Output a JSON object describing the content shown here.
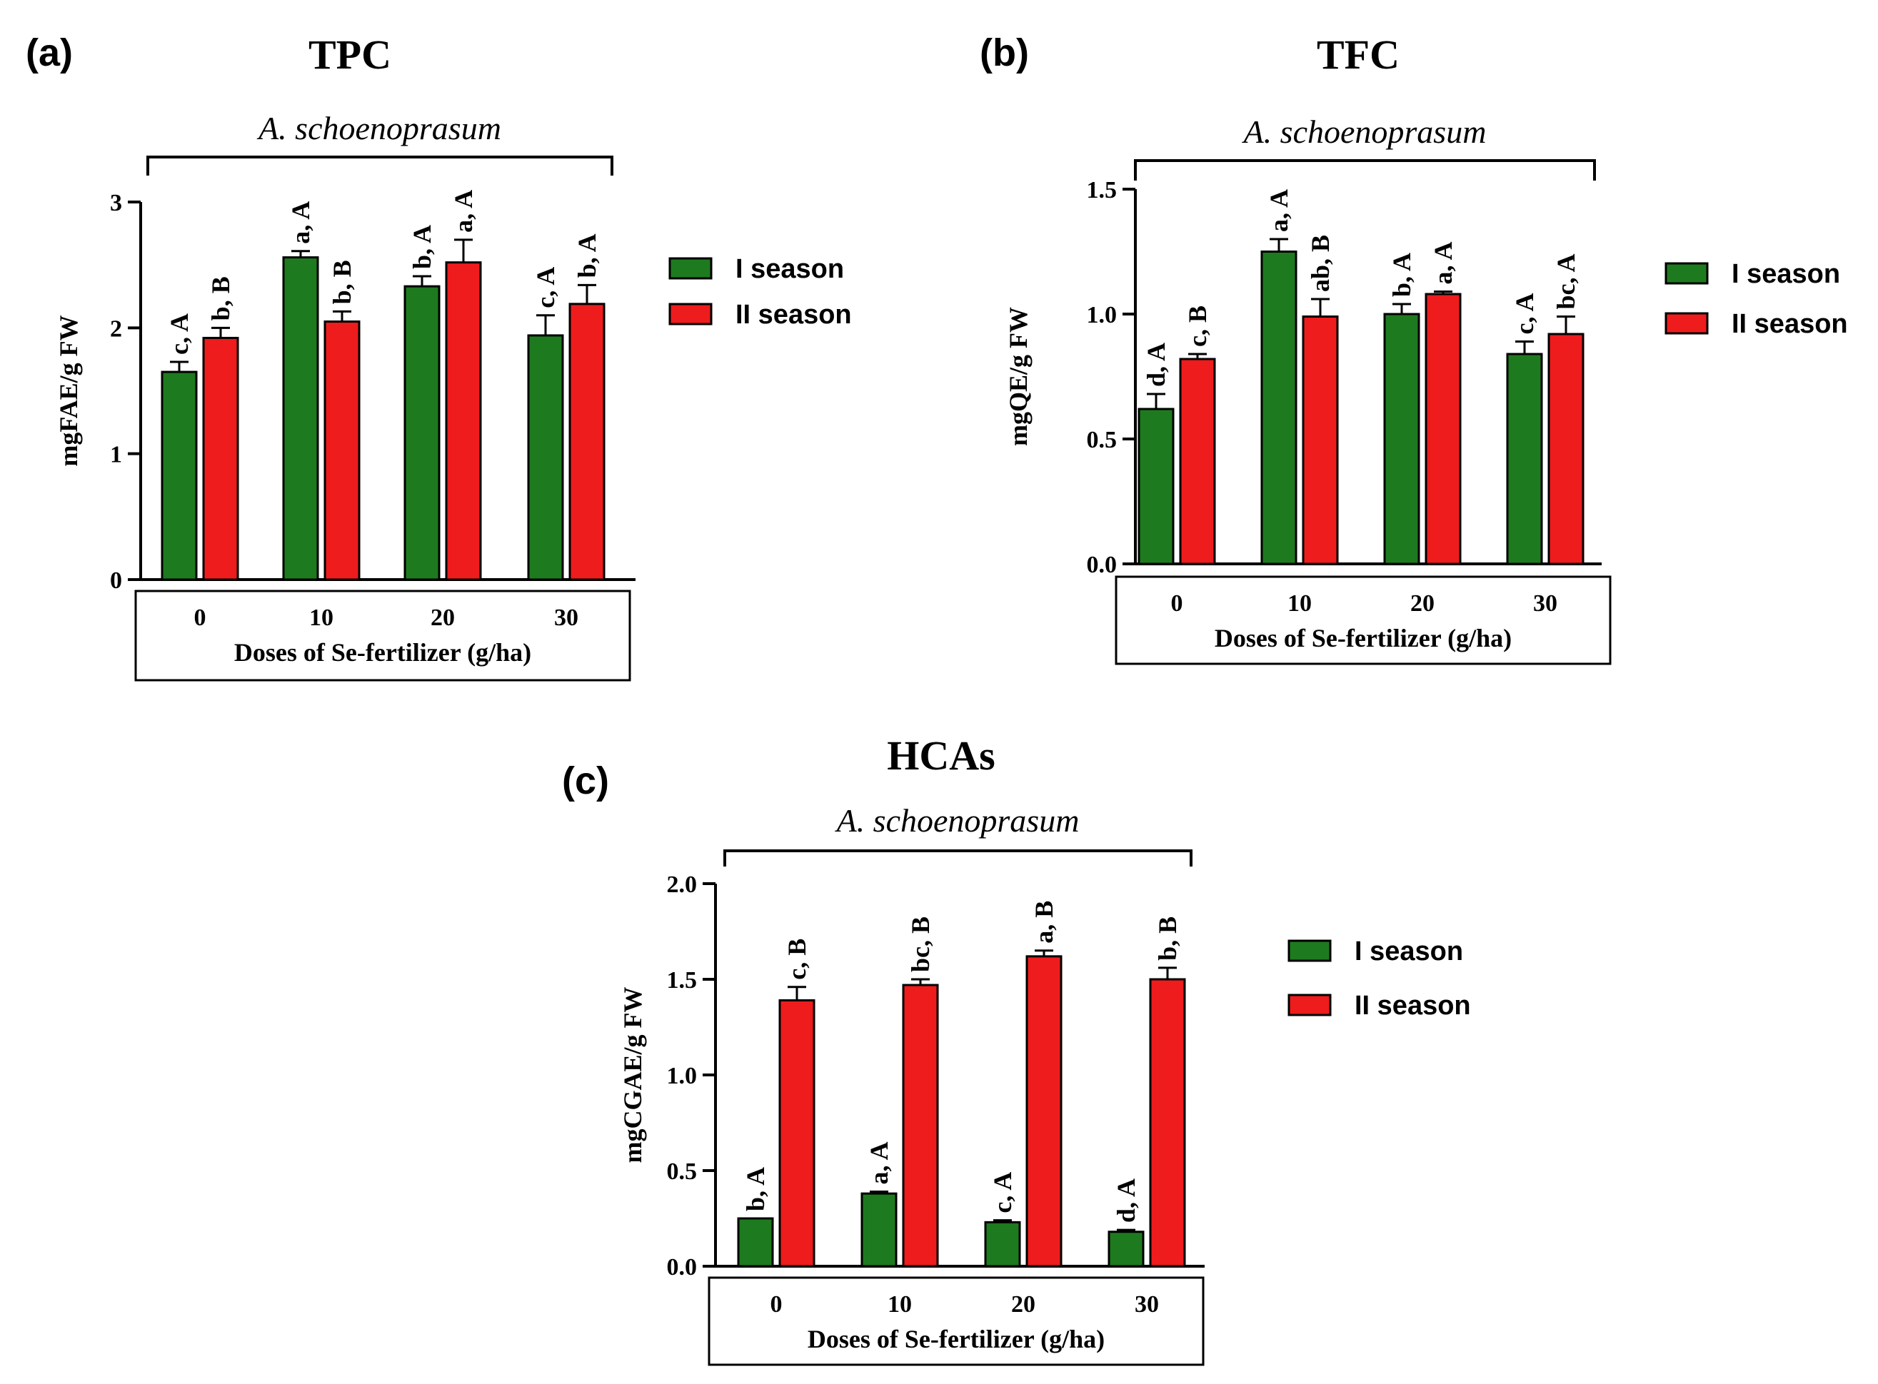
{
  "figure": {
    "panels": [
      "(a)",
      "(b)",
      "(c)"
    ]
  },
  "colors": {
    "season1": "#1e7a1e",
    "season2": "#ee1c1c",
    "axis": "#000000"
  },
  "chart_data": [
    {
      "panel": "(a)",
      "type": "bar",
      "title": "TPC",
      "subtitle": "A. schoenoprasum",
      "xlabel": "Doses of Se-fertilizer (g/ha)",
      "ylabel": "mgFAE/g FW",
      "categories": [
        "0",
        "10",
        "20",
        "30"
      ],
      "ylim": [
        0,
        3
      ],
      "yticks": [
        0,
        1,
        2,
        3
      ],
      "ytick_labels": [
        "0",
        "1",
        "2",
        "3"
      ],
      "legend_position": "right",
      "series": [
        {
          "name": "I season",
          "color_key": "season1",
          "values": [
            1.65,
            2.56,
            2.33,
            1.94
          ],
          "errors": [
            0.08,
            0.05,
            0.08,
            0.16
          ],
          "labels": [
            "c, A",
            "a, A",
            "b, A",
            "c, A"
          ]
        },
        {
          "name": "II season",
          "color_key": "season2",
          "values": [
            1.92,
            2.05,
            2.52,
            2.19
          ],
          "errors": [
            0.08,
            0.08,
            0.18,
            0.15
          ],
          "labels": [
            "b, B",
            "b, B",
            "a, A",
            "b, A"
          ]
        }
      ]
    },
    {
      "panel": "(b)",
      "type": "bar",
      "title": "TFC",
      "subtitle": "A. schoenoprasum",
      "xlabel": "Doses of Se-fertilizer (g/ha)",
      "ylabel": "mgQE/g FW",
      "categories": [
        "0",
        "10",
        "20",
        "30"
      ],
      "ylim": [
        0,
        1.5
      ],
      "yticks": [
        0,
        0.5,
        1.0,
        1.5
      ],
      "ytick_labels": [
        "0.0",
        "0.5",
        "1.0",
        "1.5"
      ],
      "legend_position": "right",
      "series": [
        {
          "name": "I season",
          "color_key": "season1",
          "values": [
            0.62,
            1.25,
            1.0,
            0.84
          ],
          "errors": [
            0.06,
            0.05,
            0.04,
            0.05
          ],
          "labels": [
            "d, A",
            "a, A",
            "b, A",
            "c, A"
          ]
        },
        {
          "name": "II season",
          "color_key": "season2",
          "values": [
            0.82,
            0.99,
            1.08,
            0.92
          ],
          "errors": [
            0.02,
            0.07,
            0.01,
            0.07
          ],
          "labels": [
            "c, B",
            "ab, B",
            "a, A",
            "bc, A"
          ]
        }
      ]
    },
    {
      "panel": "(c)",
      "type": "bar",
      "title": "HCAs",
      "subtitle": "A. schoenoprasum",
      "xlabel": "Doses of Se-fertilizer (g/ha)",
      "ylabel": "mgCGAE/g FW",
      "categories": [
        "0",
        "10",
        "20",
        "30"
      ],
      "ylim": [
        0,
        2.0
      ],
      "yticks": [
        0,
        0.5,
        1.0,
        1.5,
        2.0
      ],
      "ytick_labels": [
        "0.0",
        "0.5",
        "1.0",
        "1.5",
        "2.0"
      ],
      "legend_position": "right",
      "series": [
        {
          "name": "I season",
          "color_key": "season1",
          "values": [
            0.25,
            0.38,
            0.23,
            0.18
          ],
          "errors": [
            0.0,
            0.01,
            0.01,
            0.01
          ],
          "labels": [
            "b, A",
            "a, A",
            "c, A",
            "d, A"
          ]
        },
        {
          "name": "II season",
          "color_key": "season2",
          "values": [
            1.39,
            1.47,
            1.62,
            1.5
          ],
          "errors": [
            0.07,
            0.03,
            0.03,
            0.06
          ],
          "labels": [
            "c, B",
            "bc, B",
            "a, B",
            "b, B"
          ]
        }
      ]
    }
  ]
}
